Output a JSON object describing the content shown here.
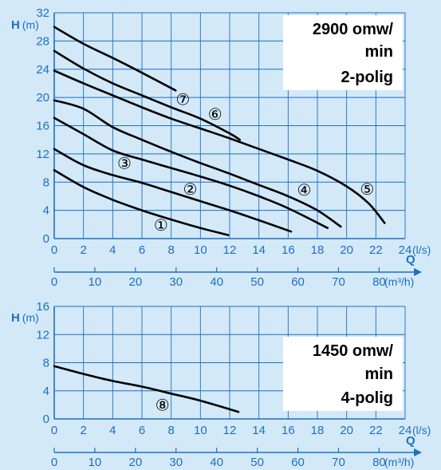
{
  "colors": {
    "background": "#d3e9f8",
    "grid": "#1e6fc0",
    "axis_text": "#1e6fc0",
    "curves": "#000000",
    "label_box": "#ffffff"
  },
  "chart_data": [
    {
      "type": "line",
      "title_lines": [
        "2900 omw/",
        "min",
        "2-polig"
      ],
      "ylabel_letter": "H",
      "ylabel_unit": "(m)",
      "xlabel_letter": "Q",
      "x_unit_ls": "(l/s)",
      "x_unit_m3h": "(m³/h)",
      "xlim": [
        0,
        24
      ],
      "ylim": [
        0,
        32
      ],
      "x_ticks_ls": [
        "0",
        "2",
        "4",
        "6",
        "8",
        "10",
        "12",
        "14",
        "16",
        "18",
        "20",
        "22",
        "24"
      ],
      "x_ticks_m3h": [
        "0",
        "10",
        "20",
        "30",
        "40",
        "50",
        "60",
        "70",
        "80"
      ],
      "x_ticks_m3h_values": [
        0,
        10,
        20,
        30,
        40,
        50,
        60,
        70,
        80
      ],
      "y_ticks": [
        "0",
        "4",
        "8",
        "12",
        "16",
        "20",
        "24",
        "28",
        "32"
      ],
      "grid": true,
      "series": [
        {
          "name": "①",
          "label_at": [
            7.3,
            1.8
          ],
          "x": [
            0,
            2,
            4,
            6,
            8,
            10,
            11.9
          ],
          "y": [
            9.7,
            7.3,
            5.5,
            4.0,
            2.7,
            1.5,
            0.5
          ]
        },
        {
          "name": "②",
          "label_at": [
            9.3,
            6.9
          ],
          "x": [
            0,
            2,
            4,
            6,
            8,
            10,
            12,
            14,
            16.2
          ],
          "y": [
            12.7,
            10.4,
            9.0,
            7.9,
            6.6,
            5.3,
            4.0,
            2.6,
            1.0
          ]
        },
        {
          "name": "③",
          "label_at": [
            4.8,
            10.6
          ],
          "x": [
            0,
            2,
            4,
            6,
            8,
            10,
            12,
            14,
            16,
            18.7
          ],
          "y": [
            17.1,
            14.8,
            12.5,
            11.2,
            10.0,
            8.8,
            7.5,
            6.0,
            4.3,
            1.5
          ]
        },
        {
          "name": "④",
          "label_at": [
            17.1,
            6.8
          ],
          "x": [
            0,
            2,
            4,
            6,
            8,
            10,
            12,
            14,
            16,
            18,
            19.6
          ],
          "y": [
            19.6,
            18.4,
            15.8,
            14.0,
            12.3,
            10.7,
            9.2,
            7.6,
            6.0,
            4.0,
            1.7
          ]
        },
        {
          "name": "⑤",
          "label_at": [
            21.4,
            6.9
          ],
          "x": [
            0,
            2,
            4,
            6,
            8,
            10,
            12,
            14,
            16,
            18,
            20,
            21.5,
            22.6
          ],
          "y": [
            23.8,
            22.0,
            20.3,
            18.6,
            17.0,
            15.6,
            14.2,
            12.7,
            11.2,
            9.6,
            7.4,
            5.0,
            2.2
          ]
        },
        {
          "name": "⑥",
          "label_at": [
            11.0,
            17.5
          ],
          "x": [
            0,
            2,
            4,
            6,
            8,
            10,
            12,
            12.7
          ],
          "y": [
            26.6,
            24.1,
            22.0,
            20.3,
            18.6,
            17.0,
            14.9,
            14.0
          ]
        },
        {
          "name": "⑦",
          "label_at": [
            8.8,
            19.6
          ],
          "x": [
            0,
            2,
            4,
            6,
            8.3
          ],
          "y": [
            30.0,
            27.6,
            25.6,
            23.5,
            21.0
          ]
        }
      ]
    },
    {
      "type": "line",
      "title_lines": [
        "1450 omw/",
        "min",
        "4-polig"
      ],
      "ylabel_letter": "H",
      "ylabel_unit": "(m)",
      "xlabel_letter": "Q",
      "x_unit_ls": "(l/s)",
      "x_unit_m3h": "(m³/h)",
      "xlim": [
        0,
        24
      ],
      "ylim": [
        0,
        16
      ],
      "x_ticks_ls": [
        "0",
        "2",
        "4",
        "6",
        "8",
        "10",
        "12",
        "14",
        "16",
        "18",
        "20",
        "22",
        "24"
      ],
      "x_ticks_m3h": [
        "0",
        "10",
        "20",
        "30",
        "40",
        "50",
        "60",
        "70",
        "80"
      ],
      "x_ticks_m3h_values": [
        0,
        10,
        20,
        30,
        40,
        50,
        60,
        70,
        80
      ],
      "y_ticks": [
        "0",
        "4",
        "8",
        "12",
        "16"
      ],
      "grid": true,
      "series": [
        {
          "name": "⑧",
          "label_at": [
            7.4,
            1.9
          ],
          "x": [
            0,
            2,
            4,
            6,
            8,
            10,
            12.6
          ],
          "y": [
            7.5,
            6.4,
            5.4,
            4.6,
            3.6,
            2.6,
            1.0
          ]
        }
      ]
    }
  ]
}
